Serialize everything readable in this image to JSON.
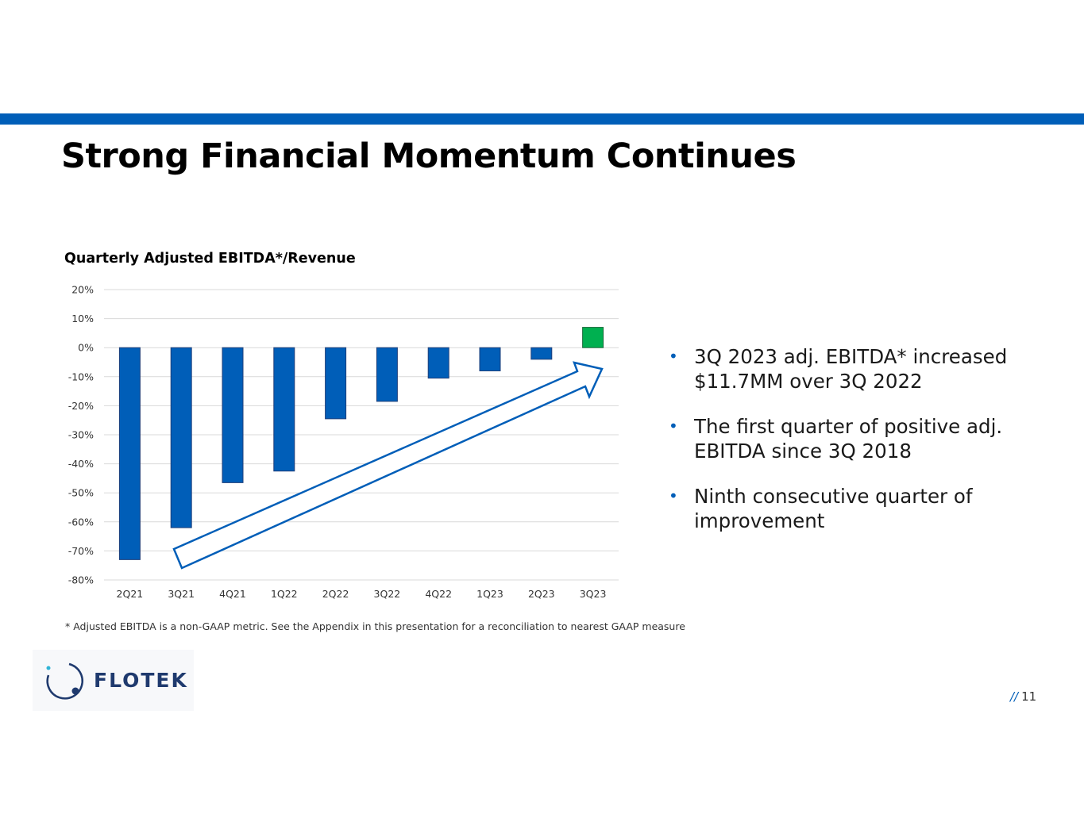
{
  "slide": {
    "title": "Strong Financial Momentum Continues",
    "page_number": "11",
    "page_prefix": "//",
    "footnote": "* Adjusted EBITDA is a non-GAAP metric. See the Appendix in this presentation for a reconciliation to nearest GAAP measure",
    "logo_text": "FLOTEK"
  },
  "bullets": [
    "3Q 2023 adj. EBITDA* increased $11.7MM over 3Q 2022",
    "The first quarter of positive adj. EBITDA since 3Q 2018",
    "Ninth consecutive quarter of improvement"
  ],
  "colors": {
    "accent": "#005eb8",
    "negative_bar": "#005eb8",
    "positive_bar": "#00b050",
    "grid": "#d9d9d9"
  },
  "chart_data": {
    "type": "bar",
    "title": "Quarterly Adjusted EBITDA*/Revenue",
    "xlabel": "",
    "ylabel": "",
    "categories": [
      "2Q21",
      "3Q21",
      "4Q21",
      "1Q22",
      "2Q22",
      "3Q22",
      "4Q22",
      "1Q23",
      "2Q23",
      "3Q23"
    ],
    "values": [
      -73,
      -62,
      -46.5,
      -42.5,
      -24.5,
      -18.5,
      -10.5,
      -8,
      -4,
      7
    ],
    "ylim": [
      -80,
      20
    ],
    "yticks": [
      20,
      10,
      0,
      -10,
      -20,
      -30,
      -40,
      -50,
      -60,
      -70,
      -80
    ],
    "ytick_labels": [
      "20%",
      "10%",
      "0%",
      "-10%",
      "-20%",
      "-30%",
      "-40%",
      "-50%",
      "-60%",
      "-70%",
      "-80%"
    ],
    "grid": true,
    "annotation": "upward trend arrow"
  }
}
